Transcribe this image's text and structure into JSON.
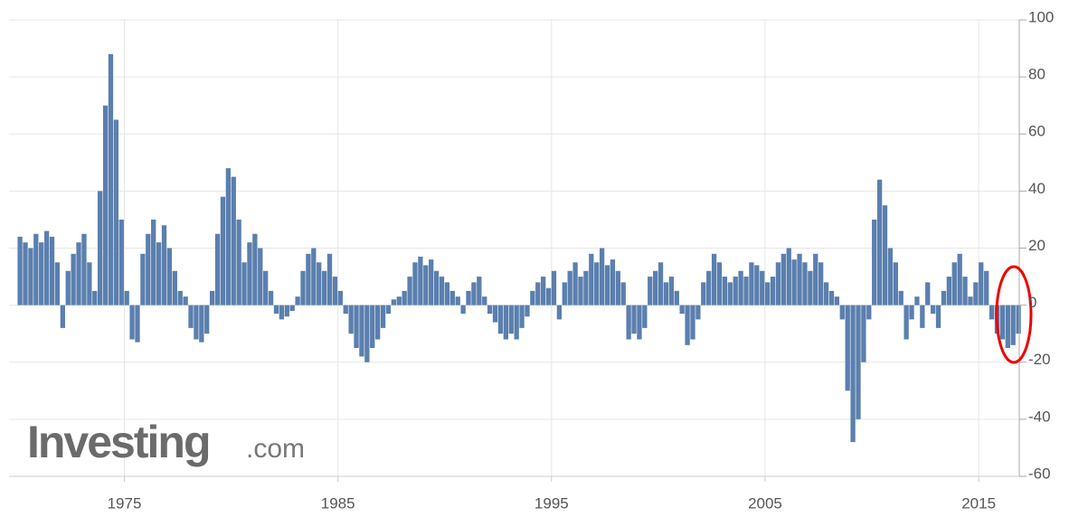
{
  "chart_data": {
    "type": "bar",
    "x": [
      1970,
      1970.25,
      1970.5,
      1970.75,
      1971,
      1971.25,
      1971.5,
      1971.75,
      1972,
      1972.25,
      1972.5,
      1972.75,
      1973,
      1973.25,
      1973.5,
      1973.75,
      1974,
      1974.25,
      1974.5,
      1974.75,
      1975,
      1975.25,
      1975.5,
      1975.75,
      1976,
      1976.25,
      1976.5,
      1976.75,
      1977,
      1977.25,
      1977.5,
      1977.75,
      1978,
      1978.25,
      1978.5,
      1978.75,
      1979,
      1979.25,
      1979.5,
      1979.75,
      1980,
      1980.25,
      1980.5,
      1980.75,
      1981,
      1981.25,
      1981.5,
      1981.75,
      1982,
      1982.25,
      1982.5,
      1982.75,
      1983,
      1983.25,
      1983.5,
      1983.75,
      1984,
      1984.25,
      1984.5,
      1984.75,
      1985,
      1985.25,
      1985.5,
      1985.75,
      1986,
      1986.25,
      1986.5,
      1986.75,
      1987,
      1987.25,
      1987.5,
      1987.75,
      1988,
      1988.25,
      1988.5,
      1988.75,
      1989,
      1989.25,
      1989.5,
      1989.75,
      1990,
      1990.25,
      1990.5,
      1990.75,
      1991,
      1991.25,
      1991.5,
      1991.75,
      1992,
      1992.25,
      1992.5,
      1992.75,
      1993,
      1993.25,
      1993.5,
      1993.75,
      1994,
      1994.25,
      1994.5,
      1994.75,
      1995,
      1995.25,
      1995.5,
      1995.75,
      1996,
      1996.25,
      1996.5,
      1996.75,
      1997,
      1997.25,
      1997.5,
      1997.75,
      1998,
      1998.25,
      1998.5,
      1998.75,
      1999,
      1999.25,
      1999.5,
      1999.75,
      2000,
      2000.25,
      2000.5,
      2000.75,
      2001,
      2001.25,
      2001.5,
      2001.75,
      2002,
      2002.25,
      2002.5,
      2002.75,
      2003,
      2003.25,
      2003.5,
      2003.75,
      2004,
      2004.25,
      2004.5,
      2004.75,
      2005,
      2005.25,
      2005.5,
      2005.75,
      2006,
      2006.25,
      2006.5,
      2006.75,
      2007,
      2007.25,
      2007.5,
      2007.75,
      2008,
      2008.25,
      2008.5,
      2008.75,
      2009,
      2009.25,
      2009.5,
      2009.75,
      2010,
      2010.25,
      2010.5,
      2010.75,
      2011,
      2011.25,
      2011.5,
      2011.75,
      2012,
      2012.25,
      2012.5,
      2012.75,
      2013,
      2013.25,
      2013.5,
      2013.75,
      2014,
      2014.25,
      2014.5,
      2014.75,
      2015,
      2015.25,
      2015.5,
      2015.75,
      2016,
      2016.25,
      2016.5,
      2016.75
    ],
    "values": [
      24,
      22,
      20,
      25,
      22,
      26,
      24,
      15,
      -8,
      12,
      18,
      22,
      25,
      15,
      5,
      40,
      70,
      88,
      65,
      30,
      5,
      -12,
      -13,
      18,
      25,
      30,
      22,
      28,
      20,
      12,
      5,
      3,
      -8,
      -12,
      -13,
      -10,
      5,
      25,
      38,
      48,
      45,
      30,
      15,
      22,
      25,
      20,
      12,
      5,
      -3,
      -5,
      -4,
      -2,
      3,
      12,
      18,
      20,
      15,
      12,
      18,
      10,
      5,
      -3,
      -10,
      -15,
      -18,
      -20,
      -15,
      -12,
      -8,
      -3,
      2,
      3,
      5,
      10,
      15,
      17,
      14,
      16,
      12,
      10,
      8,
      5,
      3,
      -3,
      5,
      8,
      10,
      3,
      -3,
      -6,
      -10,
      -12,
      -10,
      -12,
      -8,
      -4,
      5,
      8,
      10,
      6,
      12,
      -5,
      8,
      12,
      15,
      10,
      12,
      18,
      15,
      20,
      14,
      16,
      12,
      8,
      -12,
      -10,
      -12,
      -8,
      10,
      12,
      15,
      8,
      10,
      5,
      -3,
      -14,
      -12,
      -5,
      8,
      12,
      18,
      15,
      10,
      8,
      10,
      12,
      10,
      15,
      14,
      12,
      8,
      10,
      15,
      18,
      20,
      16,
      18,
      15,
      12,
      18,
      15,
      8,
      5,
      3,
      -5,
      -30,
      -48,
      -40,
      -20,
      -5,
      30,
      44,
      35,
      20,
      15,
      5,
      -12,
      -5,
      3,
      -8,
      8,
      -3,
      -8,
      5,
      10,
      15,
      18,
      10,
      3,
      8,
      15,
      12,
      -5,
      -10,
      -12,
      -15,
      -14,
      -10
    ],
    "color": "#5b7fae",
    "xlim": [
      1969.6,
      2016.9
    ],
    "xticks": [
      1975,
      1985,
      1995,
      2005,
      2015
    ],
    "ylim": [
      -60,
      100
    ],
    "yticks": [
      -60,
      -40,
      -20,
      0,
      20,
      40,
      60,
      80,
      100
    ],
    "grid": true
  },
  "logo": {
    "name": "Investing",
    "suffix": ".com"
  }
}
